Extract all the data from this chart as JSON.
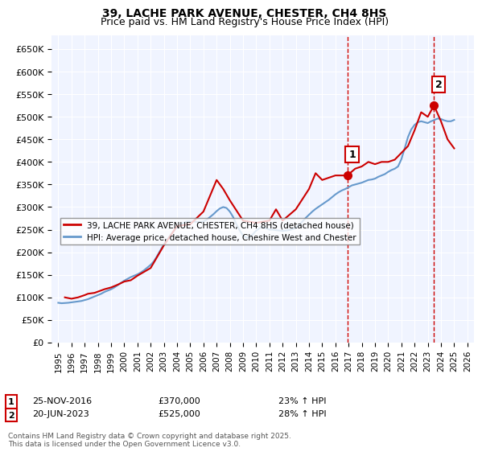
{
  "title": "39, LACHE PARK AVENUE, CHESTER, CH4 8HS",
  "subtitle": "Price paid vs. HM Land Registry's House Price Index (HPI)",
  "ylabel_ticks": [
    "£0",
    "£50K",
    "£100K",
    "£150K",
    "£200K",
    "£250K",
    "£300K",
    "£350K",
    "£400K",
    "£450K",
    "£500K",
    "£550K",
    "£600K",
    "£650K"
  ],
  "ytick_vals": [
    0,
    50000,
    100000,
    150000,
    200000,
    250000,
    300000,
    350000,
    400000,
    450000,
    500000,
    550000,
    600000,
    650000
  ],
  "ylim": [
    0,
    680000
  ],
  "xlim_start": 1994.5,
  "xlim_end": 2026.5,
  "xticks": [
    1995,
    1996,
    1997,
    1998,
    1999,
    2000,
    2001,
    2002,
    2003,
    2004,
    2005,
    2006,
    2007,
    2008,
    2009,
    2010,
    2011,
    2012,
    2013,
    2014,
    2015,
    2016,
    2017,
    2018,
    2019,
    2020,
    2021,
    2022,
    2023,
    2024,
    2025,
    2026
  ],
  "background_color": "#f0f4ff",
  "plot_bg_color": "#f0f4ff",
  "grid_color": "#ffffff",
  "sale1_x": 2016.9,
  "sale1_y": 370000,
  "sale1_label": "1",
  "sale1_date": "25-NOV-2016",
  "sale1_price": "£370,000",
  "sale1_hpi": "23% ↑ HPI",
  "sale2_x": 2023.47,
  "sale2_y": 525000,
  "sale2_label": "2",
  "sale2_date": "20-JUN-2023",
  "sale2_price": "£525,000",
  "sale2_hpi": "28% ↑ HPI",
  "line1_color": "#cc0000",
  "line2_color": "#6699cc",
  "vline_color": "#cc0000",
  "marker_color": "#cc0000",
  "legend_line1": "39, LACHE PARK AVENUE, CHESTER, CH4 8HS (detached house)",
  "legend_line2": "HPI: Average price, detached house, Cheshire West and Chester",
  "footer": "Contains HM Land Registry data © Crown copyright and database right 2025.\nThis data is licensed under the Open Government Licence v3.0.",
  "hpi_data_x": [
    1995.0,
    1995.25,
    1995.5,
    1995.75,
    1996.0,
    1996.25,
    1996.5,
    1996.75,
    1997.0,
    1997.25,
    1997.5,
    1997.75,
    1998.0,
    1998.25,
    1998.5,
    1998.75,
    1999.0,
    1999.25,
    1999.5,
    1999.75,
    2000.0,
    2000.25,
    2000.5,
    2000.75,
    2001.0,
    2001.25,
    2001.5,
    2001.75,
    2002.0,
    2002.25,
    2002.5,
    2002.75,
    2003.0,
    2003.25,
    2003.5,
    2003.75,
    2004.0,
    2004.25,
    2004.5,
    2004.75,
    2005.0,
    2005.25,
    2005.5,
    2005.75,
    2006.0,
    2006.25,
    2006.5,
    2006.75,
    2007.0,
    2007.25,
    2007.5,
    2007.75,
    2008.0,
    2008.25,
    2008.5,
    2008.75,
    2009.0,
    2009.25,
    2009.5,
    2009.75,
    2010.0,
    2010.25,
    2010.5,
    2010.75,
    2011.0,
    2011.25,
    2011.5,
    2011.75,
    2012.0,
    2012.25,
    2012.5,
    2012.75,
    2013.0,
    2013.25,
    2013.5,
    2013.75,
    2014.0,
    2014.25,
    2014.5,
    2014.75,
    2015.0,
    2015.25,
    2015.5,
    2015.75,
    2016.0,
    2016.25,
    2016.5,
    2016.75,
    2017.0,
    2017.25,
    2017.5,
    2017.75,
    2018.0,
    2018.25,
    2018.5,
    2018.75,
    2019.0,
    2019.25,
    2019.5,
    2019.75,
    2020.0,
    2020.25,
    2020.5,
    2020.75,
    2021.0,
    2021.25,
    2021.5,
    2021.75,
    2022.0,
    2022.25,
    2022.5,
    2022.75,
    2023.0,
    2023.25,
    2023.5,
    2023.75,
    2024.0,
    2024.25,
    2024.5,
    2024.75,
    2025.0
  ],
  "hpi_data_y": [
    88000,
    87000,
    87500,
    88000,
    89000,
    90000,
    91000,
    92000,
    94000,
    96000,
    99000,
    102000,
    105000,
    108000,
    112000,
    115000,
    118000,
    122000,
    127000,
    132000,
    137000,
    141000,
    145000,
    148000,
    151000,
    155000,
    160000,
    166000,
    172000,
    180000,
    192000,
    205000,
    217000,
    228000,
    238000,
    247000,
    255000,
    261000,
    265000,
    268000,
    268000,
    268000,
    267000,
    267000,
    268000,
    272000,
    278000,
    284000,
    291000,
    297000,
    300000,
    298000,
    290000,
    278000,
    262000,
    248000,
    237000,
    232000,
    233000,
    240000,
    248000,
    253000,
    255000,
    253000,
    250000,
    250000,
    249000,
    248000,
    247000,
    248000,
    249000,
    251000,
    254000,
    260000,
    268000,
    276000,
    283000,
    290000,
    296000,
    301000,
    306000,
    311000,
    316000,
    322000,
    328000,
    333000,
    337000,
    340000,
    344000,
    348000,
    350000,
    352000,
    354000,
    357000,
    360000,
    361000,
    363000,
    367000,
    370000,
    373000,
    378000,
    382000,
    385000,
    390000,
    406000,
    430000,
    455000,
    472000,
    482000,
    488000,
    490000,
    488000,
    486000,
    490000,
    493000,
    496000,
    495000,
    492000,
    490000,
    490000,
    493000
  ],
  "price_data_x": [
    1995.5,
    1996.0,
    1996.5,
    1997.0,
    1997.25,
    1997.75,
    1998.5,
    1999.0,
    1999.5,
    2000.0,
    2000.5,
    2001.0,
    2002.0,
    2003.0,
    2004.0,
    2005.0,
    2006.0,
    2007.0,
    2007.5,
    2008.0,
    2009.0,
    2010.0,
    2011.0,
    2011.5,
    2012.0,
    2013.0,
    2014.0,
    2014.5,
    2015.0,
    2016.0,
    2016.9,
    2017.5,
    2018.0,
    2018.5,
    2019.0,
    2019.5,
    2020.0,
    2020.5,
    2021.0,
    2021.5,
    2022.0,
    2022.5,
    2023.0,
    2023.47,
    2024.0,
    2024.5,
    2025.0
  ],
  "price_data_y": [
    100000,
    97000,
    100000,
    105000,
    108000,
    110000,
    118000,
    122000,
    128000,
    135000,
    138000,
    148000,
    165000,
    215000,
    258000,
    262000,
    290000,
    360000,
    340000,
    315000,
    270000,
    265000,
    270000,
    295000,
    270000,
    295000,
    340000,
    375000,
    360000,
    370000,
    370000,
    385000,
    390000,
    400000,
    395000,
    400000,
    400000,
    405000,
    420000,
    435000,
    470000,
    510000,
    500000,
    525000,
    490000,
    450000,
    430000
  ]
}
